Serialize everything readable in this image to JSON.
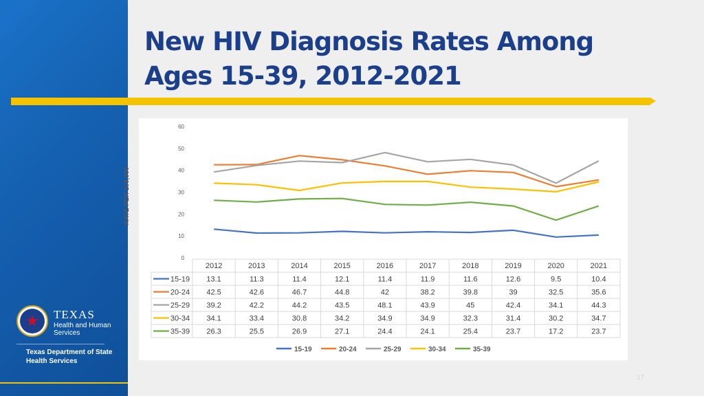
{
  "slide": {
    "title_line1": "New HIV Diagnosis Rates Among",
    "title_line2": "Ages 15-39, 2012-2021",
    "page_number": "17"
  },
  "branding": {
    "logo_word": "TEXAS",
    "logo_sub": "Health and Human Services",
    "department": "Texas Department of State Health Services"
  },
  "colors": {
    "sidebar": "#1560b0",
    "accent_bar": "#f5c400",
    "title": "#1c3f8c"
  },
  "chart_data": {
    "type": "line",
    "ylabel": "RATE PER 100,000",
    "ylim": [
      0,
      60
    ],
    "yticks": [
      0,
      10,
      20,
      30,
      40,
      50,
      60
    ],
    "categories": [
      "2012",
      "2013",
      "2014",
      "2015",
      "2016",
      "2017",
      "2018",
      "2019",
      "2020",
      "2021"
    ],
    "series": [
      {
        "name": "15-19",
        "color": "#4472c4",
        "values": [
          13.1,
          11.3,
          11.4,
          12.1,
          11.4,
          11.9,
          11.6,
          12.6,
          9.5,
          10.4
        ],
        "labels": [
          "13.1",
          "11.3",
          "11.4",
          "12.1",
          "11.4",
          "11.9",
          "11.6",
          "12.6",
          "9.5",
          "10.4"
        ]
      },
      {
        "name": "20-24",
        "color": "#ed7d31",
        "values": [
          42.5,
          42.6,
          46.7,
          44.8,
          42,
          38.2,
          39.8,
          39,
          32.5,
          35.6
        ],
        "labels": [
          "42.5",
          "42.6",
          "46.7",
          "44.8",
          "42",
          "38.2",
          "39.8",
          "39",
          "32.5",
          "35.6"
        ]
      },
      {
        "name": "25-29",
        "color": "#a5a5a5",
        "values": [
          39.2,
          42.2,
          44.2,
          43.5,
          48.1,
          43.9,
          45,
          42.4,
          34.1,
          44.3
        ],
        "labels": [
          "39.2",
          "42.2",
          "44.2",
          "43.5",
          "48.1",
          "43.9",
          "45",
          "42.4",
          "34.1",
          "44.3"
        ]
      },
      {
        "name": "30-34",
        "color": "#ffc000",
        "values": [
          34.1,
          33.4,
          30.8,
          34.2,
          34.9,
          34.9,
          32.3,
          31.4,
          30.2,
          34.7
        ],
        "labels": [
          "34.1",
          "33.4",
          "30.8",
          "34.2",
          "34.9",
          "34.9",
          "32.3",
          "31.4",
          "30.2",
          "34.7"
        ]
      },
      {
        "name": "35-39",
        "color": "#70ad47",
        "values": [
          26.3,
          25.5,
          26.9,
          27.1,
          24.4,
          24.1,
          25.4,
          23.7,
          17.2,
          23.7
        ],
        "labels": [
          "26.3",
          "25.5",
          "26.9",
          "27.1",
          "24.4",
          "24.1",
          "25.4",
          "23.7",
          "17.2",
          "23.7"
        ]
      }
    ],
    "legend_position": "bottom",
    "data_table": true,
    "grid": false
  }
}
